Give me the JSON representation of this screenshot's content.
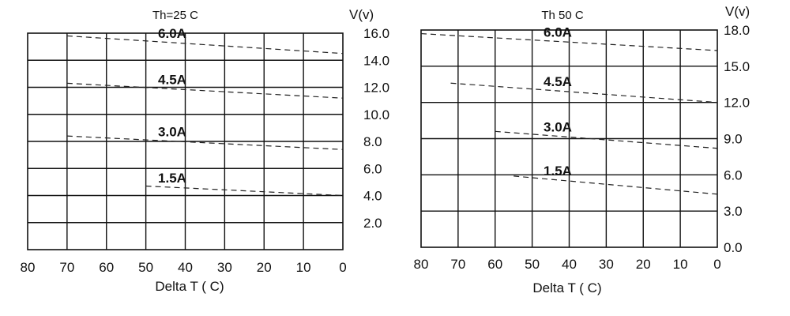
{
  "chart_data": [
    {
      "type": "line",
      "title": "Th=25 C",
      "xlabel": "Delta  T ( C)",
      "ylabel": "V(v)",
      "xlim": [
        80,
        0
      ],
      "ylim": [
        0,
        16
      ],
      "x_ticks": [
        "80",
        "70",
        "60",
        "50",
        "40",
        "30",
        "20",
        "10",
        "0"
      ],
      "y_ticks": [
        "16.0",
        "14.0",
        "12.0",
        "10.0",
        "8.0",
        "6.0",
        "4.0",
        "2.0"
      ],
      "grid": true,
      "series": [
        {
          "name": "6.0A",
          "x": [
            70,
            0
          ],
          "y": [
            15.8,
            14.5
          ]
        },
        {
          "name": "4.5A",
          "x": [
            70,
            0
          ],
          "y": [
            12.3,
            11.2
          ]
        },
        {
          "name": "3.0A",
          "x": [
            70,
            0
          ],
          "y": [
            8.4,
            7.4
          ]
        },
        {
          "name": "1.5A",
          "x": [
            50,
            0
          ],
          "y": [
            4.7,
            4.0
          ]
        }
      ]
    },
    {
      "type": "line",
      "title": "Th   50 C",
      "xlabel": "Delta  T ( C)",
      "ylabel": "V(v)",
      "xlim": [
        80,
        0
      ],
      "ylim": [
        0,
        18
      ],
      "x_ticks": [
        "80",
        "70",
        "60",
        "50",
        "40",
        "30",
        "20",
        "10",
        "0"
      ],
      "y_ticks": [
        "18.0",
        "15.0",
        "12.0",
        "9.0",
        "6.0",
        "3.0",
        "0.0"
      ],
      "grid": true,
      "series": [
        {
          "name": "6.0A",
          "x": [
            80,
            0
          ],
          "y": [
            17.7,
            16.3
          ]
        },
        {
          "name": "4.5A",
          "x": [
            72,
            0
          ],
          "y": [
            13.6,
            12.0
          ]
        },
        {
          "name": "3.0A",
          "x": [
            60,
            0
          ],
          "y": [
            9.6,
            8.2
          ]
        },
        {
          "name": "1.5A",
          "x": [
            55,
            0
          ],
          "y": [
            5.9,
            4.4
          ]
        }
      ]
    }
  ]
}
